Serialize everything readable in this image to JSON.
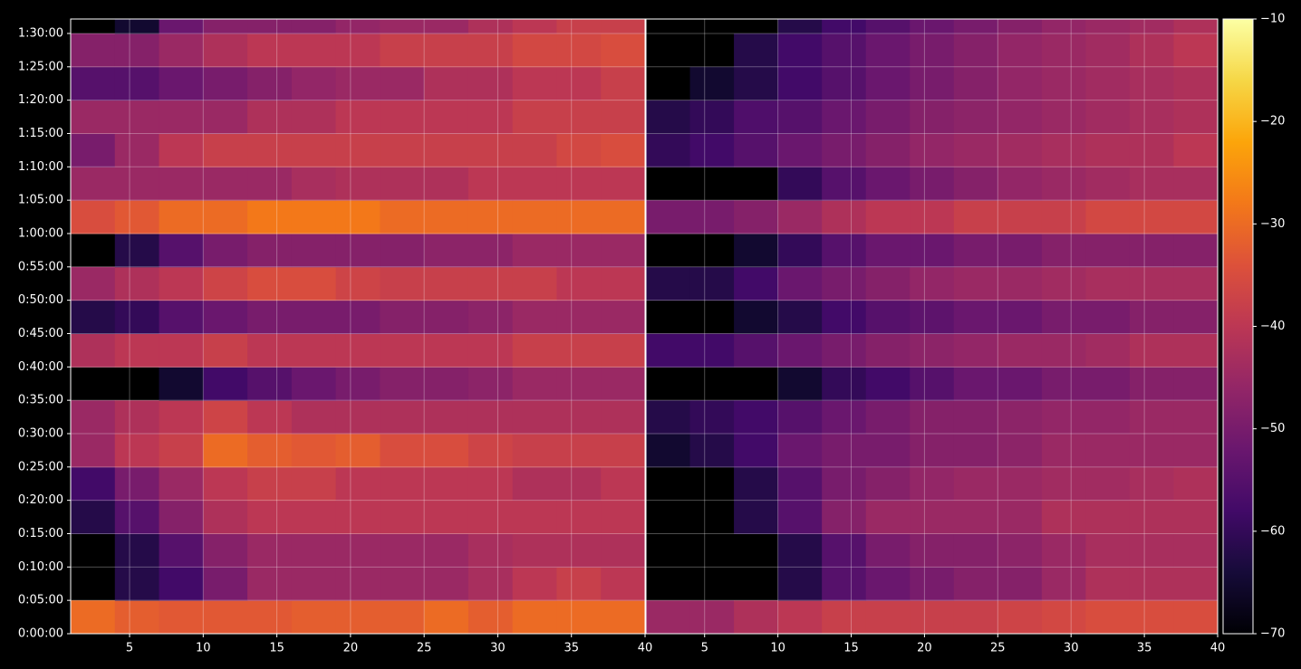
{
  "chart_data": [
    {
      "type": "heatmap",
      "grid": true,
      "xlim": [
        1,
        40
      ],
      "ylim": [
        0,
        5530
      ],
      "xticks": [
        5,
        10,
        15,
        20,
        25,
        30,
        35,
        40
      ],
      "yticks": [
        {
          "value": 0,
          "label": "0:00:00"
        },
        {
          "value": 300,
          "label": "0:05:00"
        },
        {
          "value": 600,
          "label": "0:10:00"
        },
        {
          "value": 900,
          "label": "0:15:00"
        },
        {
          "value": 1200,
          "label": "0:20:00"
        },
        {
          "value": 1500,
          "label": "0:25:00"
        },
        {
          "value": 1800,
          "label": "0:30:00"
        },
        {
          "value": 2100,
          "label": "0:35:00"
        },
        {
          "value": 2400,
          "label": "0:40:00"
        },
        {
          "value": 2700,
          "label": "0:45:00"
        },
        {
          "value": 3000,
          "label": "0:50:00"
        },
        {
          "value": 3300,
          "label": "0:55:00"
        },
        {
          "value": 3600,
          "label": "1:00:00"
        },
        {
          "value": 3900,
          "label": "1:05:00"
        },
        {
          "value": 4200,
          "label": "1:10:00"
        },
        {
          "value": 4500,
          "label": "1:15:00"
        },
        {
          "value": 4800,
          "label": "1:20:00"
        },
        {
          "value": 5100,
          "label": "1:25:00"
        },
        {
          "value": 5400,
          "label": "1:30:00"
        }
      ],
      "xbins": [
        1,
        4,
        7,
        10,
        13,
        16,
        19,
        22,
        25,
        28,
        31,
        34,
        37,
        40
      ],
      "ybins": [
        0,
        300,
        600,
        900,
        1200,
        1500,
        1800,
        2100,
        2400,
        2700,
        3000,
        3300,
        3600,
        3900,
        4200,
        4500,
        4800,
        5100,
        5400,
        5530
      ],
      "values": [
        [
          -30,
          -32,
          -33,
          -33,
          -33,
          -32,
          -32,
          -32,
          -30,
          -32,
          -30,
          -30,
          -30
        ],
        [
          null,
          -62,
          -58,
          -50,
          -45,
          -45,
          -45,
          -45,
          -45,
          -43,
          -40,
          -38,
          -40
        ],
        [
          null,
          -62,
          -55,
          -48,
          -45,
          -45,
          -45,
          -45,
          -45,
          -43,
          -42,
          -42,
          -42
        ],
        [
          -62,
          -55,
          -48,
          -42,
          -40,
          -40,
          -40,
          -40,
          -40,
          -40,
          -40,
          -40,
          -40
        ],
        [
          -58,
          -50,
          -45,
          -40,
          -38,
          -38,
          -40,
          -40,
          -40,
          -40,
          -42,
          -42,
          -40
        ],
        [
          -45,
          -40,
          -38,
          -30,
          -32,
          -33,
          -32,
          -35,
          -35,
          -37,
          -38,
          -38,
          -38
        ],
        [
          -45,
          -42,
          -40,
          -37,
          -40,
          -42,
          -42,
          -42,
          -42,
          -42,
          -42,
          -42,
          -42
        ],
        [
          null,
          null,
          -65,
          -58,
          -55,
          -52,
          -50,
          -48,
          -48,
          -47,
          -45,
          -45,
          -45
        ],
        [
          -42,
          -40,
          -40,
          -38,
          -40,
          -40,
          -40,
          -40,
          -40,
          -40,
          -38,
          -38,
          -38
        ],
        [
          -62,
          -60,
          -55,
          -52,
          -50,
          -50,
          -50,
          -48,
          -48,
          -47,
          -45,
          -45,
          -45
        ],
        [
          -45,
          -42,
          -40,
          -37,
          -35,
          -35,
          -37,
          -38,
          -38,
          -38,
          -38,
          -40,
          -40
        ],
        [
          null,
          -62,
          -55,
          -50,
          -48,
          -48,
          -48,
          -48,
          -47,
          -47,
          -45,
          -45,
          -45
        ],
        [
          -35,
          -33,
          -30,
          -30,
          -28,
          -28,
          -28,
          -30,
          -30,
          -30,
          -30,
          -30,
          -30
        ],
        [
          -45,
          -45,
          -45,
          -45,
          -45,
          -43,
          -42,
          -42,
          -42,
          -40,
          -40,
          -40,
          -40
        ],
        [
          -50,
          -45,
          -40,
          -38,
          -38,
          -38,
          -38,
          -38,
          -38,
          -38,
          -38,
          -36,
          -35
        ],
        [
          -45,
          -45,
          -45,
          -45,
          -42,
          -42,
          -40,
          -40,
          -40,
          -40,
          -38,
          -38,
          -38
        ],
        [
          -55,
          -55,
          -52,
          -50,
          -48,
          -46,
          -45,
          -45,
          -42,
          -42,
          -40,
          -40,
          -38
        ],
        [
          -48,
          -48,
          -45,
          -42,
          -40,
          -40,
          -40,
          -38,
          -38,
          -38,
          -36,
          -36,
          -35
        ],
        [
          null,
          -65,
          -52,
          -48,
          -48,
          -48,
          -46,
          -45,
          -45,
          -42,
          -40,
          -38,
          -38
        ]
      ]
    },
    {
      "type": "heatmap",
      "grid": true,
      "xlim": [
        1,
        40
      ],
      "ylim": [
        0,
        5530
      ],
      "xticks": [
        5,
        10,
        15,
        20,
        25,
        30,
        35,
        40
      ],
      "xbins": [
        1,
        4,
        7,
        10,
        13,
        16,
        19,
        22,
        25,
        28,
        31,
        34,
        37,
        40
      ],
      "ybins": [
        0,
        300,
        600,
        900,
        1200,
        1500,
        1800,
        2100,
        2400,
        2700,
        3000,
        3300,
        3600,
        3900,
        4200,
        4500,
        4800,
        5100,
        5400,
        5530
      ],
      "values": [
        [
          -45,
          -45,
          -42,
          -40,
          -38,
          -38,
          -38,
          -38,
          -37,
          -36,
          -35,
          -35,
          -35
        ],
        [
          null,
          null,
          null,
          -62,
          -55,
          -52,
          -50,
          -48,
          -48,
          -45,
          -42,
          -42,
          -42
        ],
        [
          null,
          null,
          null,
          -62,
          -55,
          -50,
          -48,
          -48,
          -47,
          -45,
          -43,
          -43,
          -43
        ],
        [
          null,
          null,
          -62,
          -55,
          -48,
          -45,
          -45,
          -45,
          -45,
          -42,
          -42,
          -42,
          -42
        ],
        [
          null,
          null,
          -62,
          -55,
          -50,
          -48,
          -46,
          -45,
          -45,
          -44,
          -44,
          -43,
          -42
        ],
        [
          -65,
          -62,
          -58,
          -52,
          -50,
          -50,
          -48,
          -48,
          -47,
          -45,
          -45,
          -45,
          -45
        ],
        [
          -62,
          -60,
          -58,
          -55,
          -52,
          -50,
          -48,
          -48,
          -47,
          -46,
          -46,
          -45,
          -45
        ],
        [
          null,
          null,
          null,
          -65,
          -60,
          -58,
          -55,
          -52,
          -52,
          -50,
          -50,
          -48,
          -48
        ],
        [
          -58,
          -58,
          -55,
          -52,
          -50,
          -48,
          -47,
          -46,
          -45,
          -45,
          -44,
          -42,
          -42
        ],
        [
          null,
          null,
          -65,
          -62,
          -58,
          -55,
          -54,
          -52,
          -52,
          -50,
          -50,
          -48,
          -48
        ],
        [
          -62,
          -62,
          -58,
          -52,
          -50,
          -48,
          -46,
          -45,
          -45,
          -44,
          -43,
          -43,
          -43
        ],
        [
          null,
          null,
          -65,
          -60,
          -55,
          -52,
          -52,
          -50,
          -50,
          -48,
          -48,
          -48,
          -48
        ],
        [
          -50,
          -50,
          -48,
          -45,
          -42,
          -40,
          -40,
          -38,
          -38,
          -38,
          -36,
          -36,
          -36
        ],
        [
          null,
          null,
          null,
          -60,
          -55,
          -52,
          -50,
          -48,
          -46,
          -45,
          -44,
          -43,
          -43
        ],
        [
          -60,
          -58,
          -55,
          -52,
          -50,
          -48,
          -46,
          -45,
          -44,
          -43,
          -42,
          -42,
          -40
        ],
        [
          -62,
          -60,
          -56,
          -55,
          -52,
          -50,
          -48,
          -47,
          -46,
          -45,
          -44,
          -43,
          -42
        ],
        [
          null,
          -65,
          -62,
          -58,
          -55,
          -52,
          -50,
          -48,
          -46,
          -45,
          -44,
          -43,
          -42
        ],
        [
          null,
          null,
          -62,
          -58,
          -55,
          -52,
          -50,
          -48,
          -46,
          -45,
          -44,
          -42,
          -40
        ],
        [
          null,
          null,
          null,
          -62,
          -58,
          -55,
          -52,
          -50,
          -48,
          -46,
          -45,
          -44,
          -42
        ]
      ],
      "colormap": "inferno",
      "clim": [
        -70,
        -10
      ],
      "cbar_ticks": [
        {
          "value": -70,
          "label": "−70"
        },
        {
          "value": -60,
          "label": "−60"
        },
        {
          "value": -50,
          "label": "−50"
        },
        {
          "value": -40,
          "label": "−40"
        },
        {
          "value": -30,
          "label": "−30"
        },
        {
          "value": -20,
          "label": "−20"
        },
        {
          "value": -10,
          "label": "−10"
        }
      ]
    }
  ]
}
